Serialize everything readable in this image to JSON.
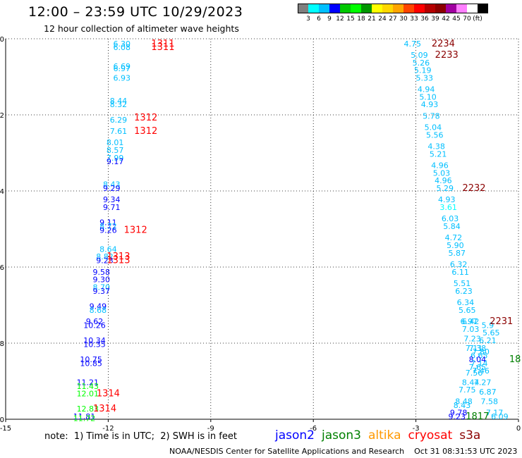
{
  "header": {
    "title": "12:00 – 23:59 UTC 10/29/2023",
    "subtitle": "12 hour collection of altimeter wave heights"
  },
  "colorbar": {
    "colors": [
      "#7f7f7f",
      "#00ffff",
      "#00bfff",
      "#0000ff",
      "#00c800",
      "#00ff00",
      "#009600",
      "#ffff00",
      "#ffd700",
      "#ffa500",
      "#ff4500",
      "#ff0000",
      "#b40000",
      "#8b0000",
      "#a000a0",
      "#ff7fff",
      "#ffffff",
      "#000000"
    ],
    "labels": [
      "3",
      "6",
      "9",
      "12",
      "15",
      "18",
      "21",
      "24",
      "27",
      "30",
      "33",
      "36",
      "39",
      "42",
      "45",
      "70",
      "(ft)"
    ]
  },
  "note": "note:  1) Time is in UTC;  2) SWH is in feet",
  "legend": [
    {
      "name": "jason2",
      "color": "#0000ff"
    },
    {
      "name": "jason3",
      "color": "#008000"
    },
    {
      "name": "altika",
      "color": "#ff9900"
    },
    {
      "name": "cryosat",
      "color": "#ff0000"
    },
    {
      "name": "s3a",
      "color": "#8b0000"
    }
  ],
  "footer": "NOAA/NESDIS Center for Satellite Applications and Research    Oct 31 08:31:53 UTC 2023",
  "chart_data": {
    "type": "scatter",
    "xlim": [
      -15,
      0
    ],
    "ylim": [
      -40,
      -30
    ],
    "xticks": [
      "-15",
      "-12",
      "-9",
      "-6",
      "-3",
      "0"
    ],
    "yticks": [
      "-30",
      "-32",
      "-34",
      "-36",
      "-38",
      "-40"
    ],
    "grid": true,
    "points": [
      {
        "x": -11.6,
        "y": -30.2,
        "label": "6.30",
        "color": "#00bfff"
      },
      {
        "x": -11.6,
        "y": -30.3,
        "label": "6.08",
        "color": "#00bfff"
      },
      {
        "x": -11.6,
        "y": -30.8,
        "label": "6.69",
        "color": "#00bfff"
      },
      {
        "x": -11.6,
        "y": -30.85,
        "label": "6.97",
        "color": "#00bfff"
      },
      {
        "x": -11.6,
        "y": -31.1,
        "label": "6.93",
        "color": "#00bfff"
      },
      {
        "x": -11.7,
        "y": -31.7,
        "label": "8.44",
        "color": "#00bfff"
      },
      {
        "x": -11.7,
        "y": -31.8,
        "label": "8.32",
        "color": "#00bfff"
      },
      {
        "x": -11.7,
        "y": -32.2,
        "label": "6.29",
        "color": "#00bfff"
      },
      {
        "x": -11.7,
        "y": -32.5,
        "label": "7.61",
        "color": "#00bfff"
      },
      {
        "x": -11.8,
        "y": -32.8,
        "label": "8.01",
        "color": "#00bfff"
      },
      {
        "x": -11.8,
        "y": -33.0,
        "label": "8.57",
        "color": "#00bfff"
      },
      {
        "x": -11.8,
        "y": -33.2,
        "label": "7.99",
        "color": "#00bfff"
      },
      {
        "x": -11.8,
        "y": -33.3,
        "label": "9.17",
        "color": "#0000ff"
      },
      {
        "x": -11.9,
        "y": -33.9,
        "label": "8.43",
        "color": "#00bfff"
      },
      {
        "x": -11.9,
        "y": -34.0,
        "label": "9.29",
        "color": "#0000ff"
      },
      {
        "x": -11.9,
        "y": -34.3,
        "label": "9.34",
        "color": "#0000ff"
      },
      {
        "x": -11.9,
        "y": -34.5,
        "label": "9.71",
        "color": "#0000ff"
      },
      {
        "x": -12.0,
        "y": -34.9,
        "label": "9.11",
        "color": "#0000ff"
      },
      {
        "x": -12.0,
        "y": -35.0,
        "label": "8.72",
        "color": "#00bfff"
      },
      {
        "x": -12.0,
        "y": -35.1,
        "label": "9.26",
        "color": "#0000ff"
      },
      {
        "x": -12.0,
        "y": -35.6,
        "label": "8.64",
        "color": "#00bfff"
      },
      {
        "x": -12.1,
        "y": -35.8,
        "label": "8.82",
        "color": "#00bfff"
      },
      {
        "x": -12.1,
        "y": -35.9,
        "label": "9.23",
        "color": "#0000ff"
      },
      {
        "x": -12.2,
        "y": -36.2,
        "label": "9.58",
        "color": "#0000ff"
      },
      {
        "x": -12.2,
        "y": -36.4,
        "label": "9.30",
        "color": "#0000ff"
      },
      {
        "x": -12.2,
        "y": -36.6,
        "label": "8.70",
        "color": "#00bfff"
      },
      {
        "x": -12.2,
        "y": -36.7,
        "label": "9.37",
        "color": "#0000ff"
      },
      {
        "x": -12.3,
        "y": -37.1,
        "label": "9.49",
        "color": "#0000ff"
      },
      {
        "x": -12.3,
        "y": -37.2,
        "label": "8.68",
        "color": "#00bfff"
      },
      {
        "x": -12.4,
        "y": -37.5,
        "label": "9.62",
        "color": "#0000ff"
      },
      {
        "x": -12.4,
        "y": -37.6,
        "label": "10.26",
        "color": "#0000ff"
      },
      {
        "x": -12.4,
        "y": -38.0,
        "label": "10.34",
        "color": "#0000ff"
      },
      {
        "x": -12.4,
        "y": -38.1,
        "label": "10.35",
        "color": "#0000ff"
      },
      {
        "x": -12.5,
        "y": -38.5,
        "label": "10.75",
        "color": "#0000ff"
      },
      {
        "x": -12.5,
        "y": -38.6,
        "label": "10.85",
        "color": "#0000ff"
      },
      {
        "x": -12.6,
        "y": -39.1,
        "label": "11.21",
        "color": "#0000ff"
      },
      {
        "x": -12.6,
        "y": -39.2,
        "label": "11.43",
        "color": "#00ff00"
      },
      {
        "x": -12.6,
        "y": -39.4,
        "label": "12.01",
        "color": "#00ff00"
      },
      {
        "x": -12.6,
        "y": -39.8,
        "label": "12.83",
        "color": "#00ff00"
      },
      {
        "x": -12.7,
        "y": -40.0,
        "label": "11.81",
        "color": "#0000ff"
      },
      {
        "x": -12.7,
        "y": -40.05,
        "label": "11.72",
        "color": "#00ff00"
      },
      {
        "x": -3.1,
        "y": -30.2,
        "label": "4.75",
        "color": "#00bfff"
      },
      {
        "x": -2.9,
        "y": -30.5,
        "label": "5.09",
        "color": "#00bfff"
      },
      {
        "x": -2.85,
        "y": -30.7,
        "label": "5.26",
        "color": "#00bfff"
      },
      {
        "x": -2.8,
        "y": -30.9,
        "label": "5.19",
        "color": "#00bfff"
      },
      {
        "x": -2.75,
        "y": -31.1,
        "label": "5.33",
        "color": "#00bfff"
      },
      {
        "x": -2.7,
        "y": -31.4,
        "label": "4.94",
        "color": "#00bfff"
      },
      {
        "x": -2.65,
        "y": -31.6,
        "label": "5.10",
        "color": "#00bfff"
      },
      {
        "x": -2.6,
        "y": -31.8,
        "label": "4.93",
        "color": "#00bfff"
      },
      {
        "x": -2.55,
        "y": -32.1,
        "label": "5.78",
        "color": "#00bfff"
      },
      {
        "x": -2.5,
        "y": -32.4,
        "label": "5.04",
        "color": "#00bfff"
      },
      {
        "x": -2.45,
        "y": -32.6,
        "label": "5.56",
        "color": "#00bfff"
      },
      {
        "x": -2.4,
        "y": -32.9,
        "label": "4.38",
        "color": "#00bfff"
      },
      {
        "x": -2.35,
        "y": -33.1,
        "label": "5.21",
        "color": "#00bfff"
      },
      {
        "x": -2.3,
        "y": -33.4,
        "label": "4.96",
        "color": "#00bfff"
      },
      {
        "x": -2.25,
        "y": -33.6,
        "label": "5.03",
        "color": "#00bfff"
      },
      {
        "x": -2.2,
        "y": -33.8,
        "label": "4.96",
        "color": "#00bfff"
      },
      {
        "x": -2.15,
        "y": -34.0,
        "label": "5.29",
        "color": "#00bfff"
      },
      {
        "x": -2.1,
        "y": -34.3,
        "label": "4.93",
        "color": "#00bfff"
      },
      {
        "x": -2.05,
        "y": -34.5,
        "label": "3.61",
        "color": "#00ffff"
      },
      {
        "x": -2.0,
        "y": -34.8,
        "label": "6.03",
        "color": "#00bfff"
      },
      {
        "x": -1.95,
        "y": -35.0,
        "label": "5.84",
        "color": "#00bfff"
      },
      {
        "x": -1.9,
        "y": -35.3,
        "label": "4.72",
        "color": "#00bfff"
      },
      {
        "x": -1.85,
        "y": -35.5,
        "label": "5.90",
        "color": "#00bfff"
      },
      {
        "x": -1.8,
        "y": -35.7,
        "label": "5.87",
        "color": "#00bfff"
      },
      {
        "x": -1.75,
        "y": -36.0,
        "label": "6.32",
        "color": "#00bfff"
      },
      {
        "x": -1.7,
        "y": -36.2,
        "label": "6.11",
        "color": "#00bfff"
      },
      {
        "x": -1.65,
        "y": -36.5,
        "label": "5.51",
        "color": "#00bfff"
      },
      {
        "x": -1.6,
        "y": -36.7,
        "label": "6.23",
        "color": "#00bfff"
      },
      {
        "x": -1.55,
        "y": -37.0,
        "label": "6.34",
        "color": "#00bfff"
      },
      {
        "x": -1.5,
        "y": -37.2,
        "label": "5.65",
        "color": "#00bfff"
      },
      {
        "x": -1.45,
        "y": -37.5,
        "label": "6.97",
        "color": "#00bfff"
      },
      {
        "x": -1.4,
        "y": -37.5,
        "label": "6.42",
        "color": "#00bfff"
      },
      {
        "x": -1.4,
        "y": -37.7,
        "label": "7.03",
        "color": "#00bfff"
      },
      {
        "x": -1.35,
        "y": -37.95,
        "label": "7.23",
        "color": "#00bfff"
      },
      {
        "x": -1.3,
        "y": -38.2,
        "label": "7.11",
        "color": "#00bfff"
      },
      {
        "x": -1.2,
        "y": -38.2,
        "label": "7.38",
        "color": "#00bfff"
      },
      {
        "x": -0.9,
        "y": -37.6,
        "label": "5.9",
        "color": "#00bfff"
      },
      {
        "x": -0.8,
        "y": -37.8,
        "label": "5.65",
        "color": "#00bfff"
      },
      {
        "x": -0.9,
        "y": -38.0,
        "label": "6.21",
        "color": "#00bfff"
      },
      {
        "x": -1.1,
        "y": -38.3,
        "label": "7.80",
        "color": "#00bfff"
      },
      {
        "x": -1.15,
        "y": -38.4,
        "label": "6.65",
        "color": "#00bfff"
      },
      {
        "x": -1.2,
        "y": -38.5,
        "label": "8.04",
        "color": "#0000ff"
      },
      {
        "x": -1.15,
        "y": -38.6,
        "label": "7.14",
        "color": "#00bfff"
      },
      {
        "x": -1.2,
        "y": -38.7,
        "label": "7.65",
        "color": "#00bfff"
      },
      {
        "x": -1.1,
        "y": -38.8,
        "label": "7.46",
        "color": "#00bfff"
      },
      {
        "x": -1.3,
        "y": -38.85,
        "label": "7.56",
        "color": "#00bfff"
      },
      {
        "x": -1.4,
        "y": -39.1,
        "label": "8.44",
        "color": "#00bfff"
      },
      {
        "x": -1.05,
        "y": -39.1,
        "label": "7.27",
        "color": "#00bfff"
      },
      {
        "x": -1.5,
        "y": -39.3,
        "label": "7.75",
        "color": "#00bfff"
      },
      {
        "x": -0.9,
        "y": -39.35,
        "label": "6.87",
        "color": "#00bfff"
      },
      {
        "x": -1.6,
        "y": -39.6,
        "label": "8.48",
        "color": "#00bfff"
      },
      {
        "x": -0.85,
        "y": -39.6,
        "label": "7.58",
        "color": "#00bfff"
      },
      {
        "x": -1.65,
        "y": -39.7,
        "label": "8.43",
        "color": "#00bfff"
      },
      {
        "x": -1.75,
        "y": -39.9,
        "label": "9.78",
        "color": "#0000ff"
      },
      {
        "x": -0.7,
        "y": -39.9,
        "label": "7.17",
        "color": "#00bfff"
      },
      {
        "x": -1.8,
        "y": -40.0,
        "label": "9.23",
        "color": "#0000ff"
      },
      {
        "x": -0.55,
        "y": -40.0,
        "label": "6.09",
        "color": "#00bfff"
      }
    ],
    "track_labels": [
      {
        "x": -10.4,
        "y": -30.2,
        "label": "1311",
        "color": "#ff0000"
      },
      {
        "x": -10.4,
        "y": -30.3,
        "label": "1311",
        "color": "#ff0000"
      },
      {
        "x": -10.9,
        "y": -32.15,
        "label": "1312",
        "color": "#ff0000"
      },
      {
        "x": -10.9,
        "y": -32.5,
        "label": "1312",
        "color": "#ff0000"
      },
      {
        "x": -11.2,
        "y": -35.1,
        "label": "1312",
        "color": "#ff0000"
      },
      {
        "x": -11.7,
        "y": -35.8,
        "label": "1313",
        "color": "#ff0000"
      },
      {
        "x": -11.7,
        "y": -35.9,
        "label": "1313",
        "color": "#ff0000"
      },
      {
        "x": -12.0,
        "y": -39.4,
        "label": "1314",
        "color": "#ff0000"
      },
      {
        "x": -12.1,
        "y": -39.8,
        "label": "1314",
        "color": "#ff0000"
      },
      {
        "x": -2.2,
        "y": -30.2,
        "label": "2234",
        "color": "#8b0000"
      },
      {
        "x": -2.1,
        "y": -30.5,
        "label": "2233",
        "color": "#8b0000"
      },
      {
        "x": -1.3,
        "y": -34.0,
        "label": "2232",
        "color": "#8b0000"
      },
      {
        "x": -0.5,
        "y": -37.5,
        "label": "2231",
        "color": "#8b0000"
      },
      {
        "x": -1.2,
        "y": -40.0,
        "label": "1817",
        "color": "#008000"
      },
      {
        "x": -0.1,
        "y": -38.5,
        "label": "18",
        "color": "#008000"
      }
    ]
  }
}
